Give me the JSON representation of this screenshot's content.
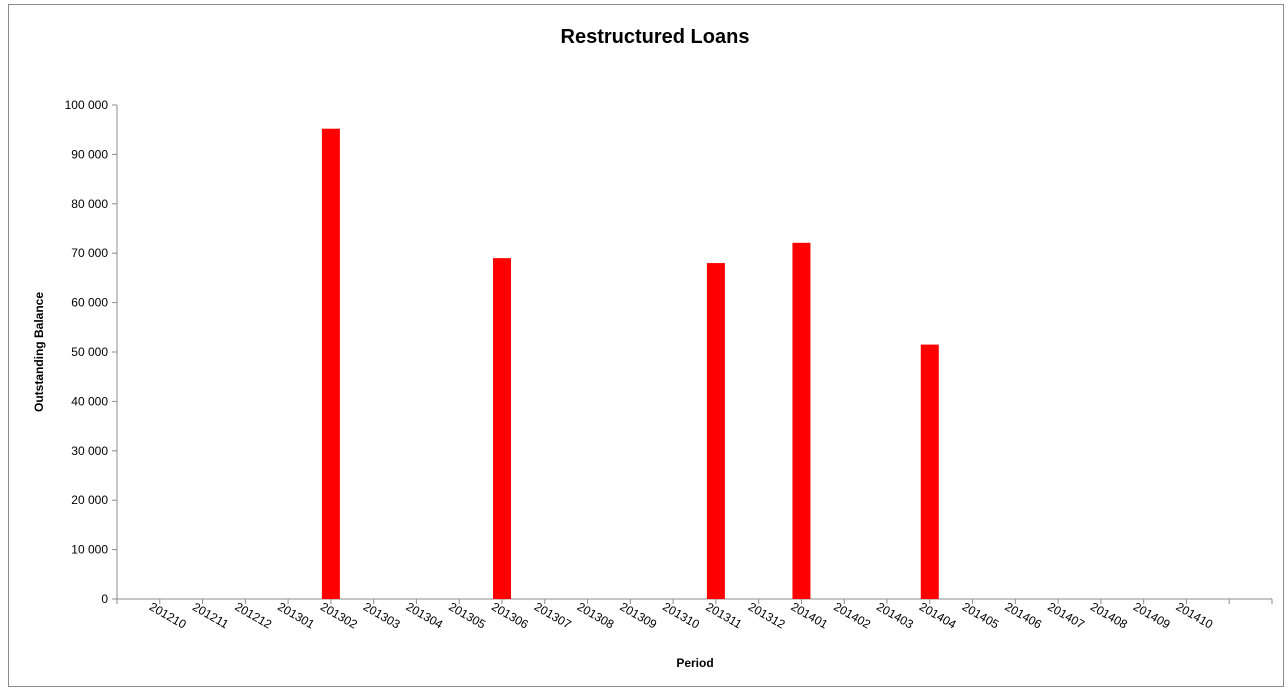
{
  "chart_data": {
    "type": "bar",
    "title": "Restructured Loans",
    "xlabel": "Period",
    "ylabel": "Outstanding Balance",
    "ylim": [
      0,
      100000
    ],
    "yticks": [
      0,
      10000,
      20000,
      30000,
      40000,
      50000,
      60000,
      70000,
      80000,
      90000,
      100000
    ],
    "ytick_labels": [
      "0",
      "10 000",
      "20 000",
      "30 000",
      "40 000",
      "50 000",
      "60 000",
      "70 000",
      "80 000",
      "90 000",
      "100 000"
    ],
    "categories": [
      "201210",
      "201211",
      "201212",
      "201301",
      "201302",
      "201303",
      "201304",
      "201305",
      "201306",
      "201307",
      "201308",
      "201309",
      "201310",
      "201311",
      "201312",
      "201401",
      "201402",
      "201403",
      "201404",
      "201405",
      "201406",
      "201407",
      "201408",
      "201409",
      "201410"
    ],
    "values": [
      0,
      0,
      0,
      0,
      95200,
      0,
      0,
      0,
      69000,
      0,
      0,
      0,
      0,
      68000,
      0,
      72100,
      0,
      0,
      51500,
      0,
      0,
      0,
      0,
      0,
      0
    ],
    "bar_color": "#ff0000",
    "grid": false,
    "legend": "none"
  }
}
